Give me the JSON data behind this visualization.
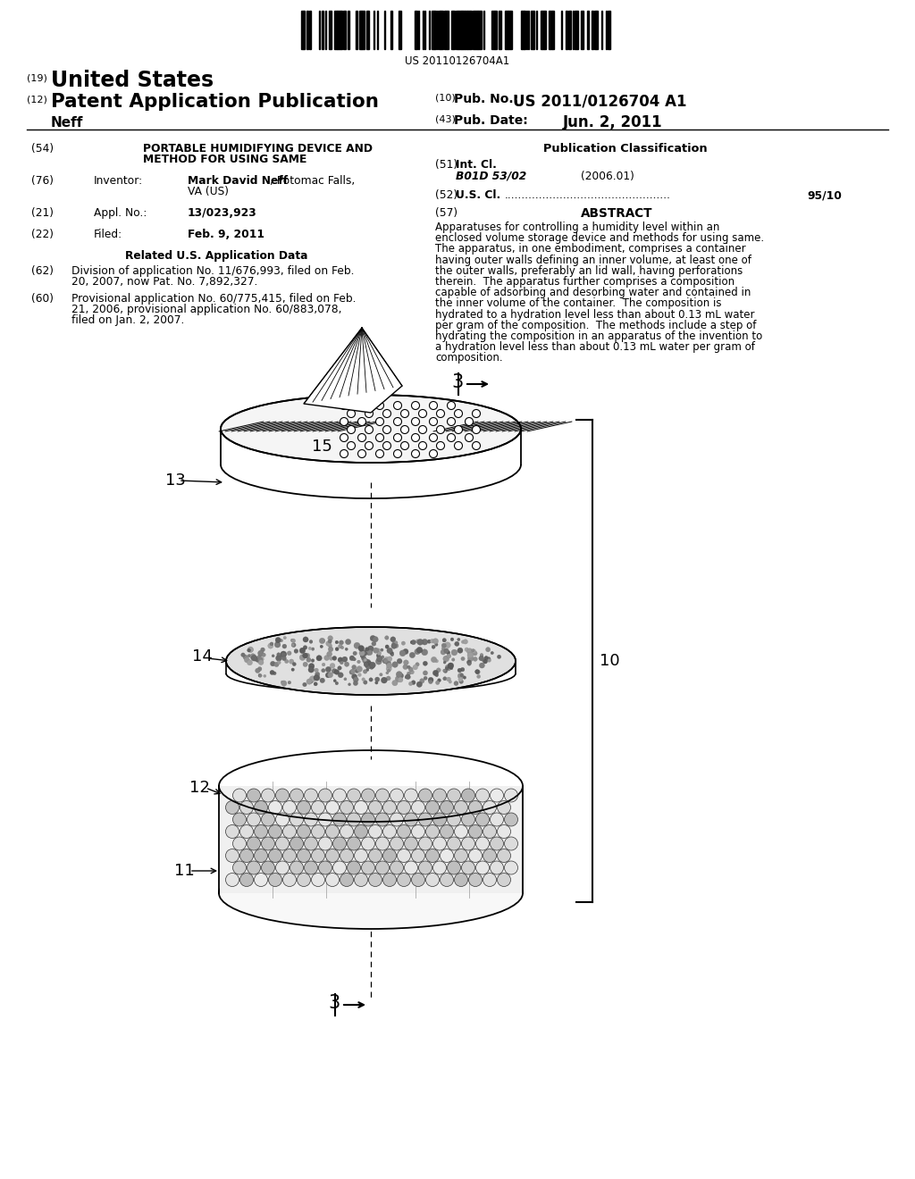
{
  "background_color": "#ffffff",
  "barcode_text": "US 20110126704A1",
  "header_19": "(19)",
  "header_19_text": "United States",
  "header_12": "(12)",
  "header_12_text": "Patent Application Publication",
  "header_inventor": "Neff",
  "header_10": "(10)",
  "header_10_label": "Pub. No.:",
  "header_10_value": "US 2011/0126704 A1",
  "header_43": "(43)",
  "header_43_label": "Pub. Date:",
  "header_43_value": "Jun. 2, 2011",
  "field_54_num": "(54)",
  "field_54_line1": "PORTABLE HUMIDIFYING DEVICE AND",
  "field_54_line2": "METHOD FOR USING SAME",
  "pub_class_title": "Publication Classification",
  "field_51_num": "(51)",
  "field_51_label": "Int. Cl.",
  "field_51_class": "B01D 53/02",
  "field_51_year": "(2006.01)",
  "field_52_num": "(52)",
  "field_52_label": "U.S. Cl.",
  "field_52_value": "95/10",
  "field_57_num": "(57)",
  "field_57_label": "ABSTRACT",
  "abstract_lines": [
    "Apparatuses for controlling a humidity level within an",
    "enclosed volume storage device and methods for using same.",
    "The apparatus, in one embodiment, comprises a container",
    "having outer walls defining an inner volume, at least one of",
    "the outer walls, preferably an lid wall, having perforations",
    "therein.  The apparatus further comprises a composition",
    "capable of adsorbing and desorbing water and contained in",
    "the inner volume of the container.  The composition is",
    "hydrated to a hydration level less than about 0.13 mL water",
    "per gram of the composition.  The methods include a step of",
    "hydrating the composition in an apparatus of the invention to",
    "a hydration level less than about 0.13 mL water per gram of",
    "composition."
  ],
  "field_76_num": "(76)",
  "field_76_label": "Inventor:",
  "field_76_name": "Mark David Neff",
  "field_76_addr1": ", Potomac Falls,",
  "field_76_addr2": "VA (US)",
  "field_21_num": "(21)",
  "field_21_label": "Appl. No.:",
  "field_21_value": "13/023,923",
  "field_22_num": "(22)",
  "field_22_label": "Filed:",
  "field_22_value": "Feb. 9, 2011",
  "related_title": "Related U.S. Application Data",
  "field_62_num": "(62)",
  "field_62_lines": [
    "Division of application No. 11/676,993, filed on Feb.",
    "20, 2007, now Pat. No. 7,892,327."
  ],
  "field_60_num": "(60)",
  "field_60_lines": [
    "Provisional application No. 60/775,415, filed on Feb.",
    "21, 2006, provisional application No. 60/883,078,",
    "filed on Jan. 2, 2007."
  ],
  "lbl_3": "3",
  "lbl_15": "15",
  "lbl_13": "13",
  "lbl_14": "14",
  "lbl_10": "10",
  "lbl_12": "12",
  "lbl_11": "11"
}
